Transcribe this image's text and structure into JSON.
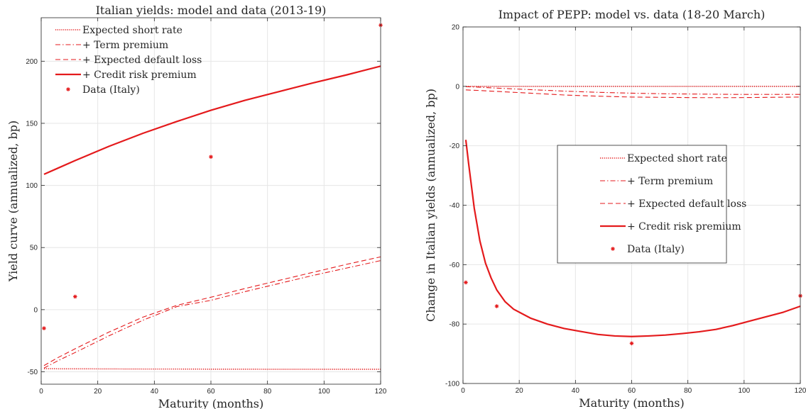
{
  "chart_data": [
    {
      "type": "line",
      "title": "Italian yields: model and data (2013-19)",
      "xlabel": "Maturity (months)",
      "ylabel": "Yield curve (annualized, bp)",
      "xlim": [
        0,
        120
      ],
      "ylim": [
        -60,
        235
      ],
      "xticks": [
        0,
        20,
        40,
        60,
        80,
        100,
        120
      ],
      "yticks": [
        -50,
        0,
        50,
        100,
        150,
        200
      ],
      "grid": true,
      "legend_position": "top-left",
      "series": [
        {
          "name": "Expected short rate",
          "style": "dotted",
          "x": [
            1,
            6,
            12,
            24,
            36,
            48,
            60,
            72,
            84,
            96,
            108,
            120
          ],
          "y": [
            -47.5,
            -47.6,
            -47.6,
            -47.7,
            -47.8,
            -47.8,
            -47.9,
            -47.9,
            -48.0,
            -48.0,
            -48.0,
            -48.0
          ]
        },
        {
          "name": "+ Term premium",
          "style": "dashdot",
          "x": [
            1,
            6,
            12,
            24,
            36,
            48,
            60,
            72,
            84,
            96,
            108,
            120
          ],
          "y": [
            -47,
            -41,
            -34.5,
            -21,
            -8.5,
            2.5,
            7.5,
            14.5,
            21,
            27.5,
            33.5,
            39.5
          ]
        },
        {
          "name": "+ Expected default loss",
          "style": "dashed",
          "x": [
            1,
            6,
            12,
            24,
            36,
            48,
            60,
            72,
            84,
            96,
            108,
            120
          ],
          "y": [
            -45,
            -38.5,
            -31.5,
            -18,
            -6,
            3.5,
            10,
            17,
            23.5,
            30,
            36.5,
            42.5
          ]
        },
        {
          "name": "+ Credit risk premium",
          "style": "solid",
          "x": [
            1,
            6,
            12,
            24,
            36,
            48,
            60,
            72,
            84,
            96,
            108,
            120
          ],
          "y": [
            109,
            114,
            120,
            131.5,
            142,
            151.5,
            160.5,
            168.5,
            175.5,
            182.5,
            189,
            196
          ]
        },
        {
          "name": "Data (Italy)",
          "style": "marker",
          "x": [
            1,
            12,
            60,
            120
          ],
          "y": [
            -15,
            10.5,
            123,
            229
          ]
        }
      ]
    },
    {
      "type": "line",
      "title": "Impact of PEPP: model vs. data (18-20 March)",
      "xlabel": "Maturity (months)",
      "ylabel": "Change in Italian yields (annualized, bp)",
      "xlim": [
        0,
        120
      ],
      "ylim": [
        -100,
        20
      ],
      "xticks": [
        0,
        20,
        40,
        60,
        80,
        100,
        120
      ],
      "yticks": [
        -100,
        -80,
        -60,
        -40,
        -20,
        0,
        20
      ],
      "grid": true,
      "legend_position": "center-right",
      "series": [
        {
          "name": "Expected short rate",
          "style": "dotted",
          "x": [
            1,
            6,
            12,
            24,
            36,
            48,
            60,
            72,
            84,
            96,
            108,
            120
          ],
          "y": [
            0,
            0,
            0,
            0,
            0,
            0,
            0,
            0,
            0,
            0,
            0,
            0
          ]
        },
        {
          "name": "+ Term premium",
          "style": "dashdot",
          "x": [
            1,
            6,
            12,
            24,
            36,
            48,
            60,
            72,
            84,
            96,
            108,
            120
          ],
          "y": [
            -0.1,
            -0.3,
            -0.6,
            -1.1,
            -1.6,
            -2.0,
            -2.3,
            -2.5,
            -2.6,
            -2.7,
            -2.7,
            -2.7
          ]
        },
        {
          "name": "+ Expected default loss",
          "style": "dashed",
          "x": [
            1,
            6,
            12,
            24,
            36,
            48,
            60,
            72,
            84,
            96,
            108,
            120
          ],
          "y": [
            -1.2,
            -1.4,
            -1.7,
            -2.3,
            -2.9,
            -3.3,
            -3.6,
            -3.7,
            -3.8,
            -3.8,
            -3.7,
            -3.6
          ]
        },
        {
          "name": "+ Credit risk premium",
          "style": "solid",
          "x": [
            1,
            2,
            4,
            6,
            8,
            10,
            12,
            15,
            18,
            21,
            24,
            30,
            36,
            42,
            48,
            54,
            60,
            66,
            72,
            78,
            84,
            90,
            96,
            102,
            108,
            114,
            120
          ],
          "y": [
            -18,
            -26,
            -41,
            -52,
            -59.5,
            -64.5,
            -68.5,
            -72.5,
            -75,
            -76.5,
            -78,
            -80,
            -81.5,
            -82.5,
            -83.5,
            -84,
            -84.2,
            -84,
            -83.7,
            -83.2,
            -82.6,
            -81.8,
            -80.5,
            -79,
            -77.5,
            -76,
            -74
          ]
        },
        {
          "name": "Data (Italy)",
          "style": "marker",
          "x": [
            1,
            12,
            60,
            120
          ],
          "y": [
            -66,
            -74,
            -86.5,
            -70.5
          ]
        }
      ]
    }
  ],
  "colors": {
    "series": "#e41a1c",
    "grid": "#e6e6e6",
    "axis": "#262626",
    "legend_border": "#262626"
  }
}
